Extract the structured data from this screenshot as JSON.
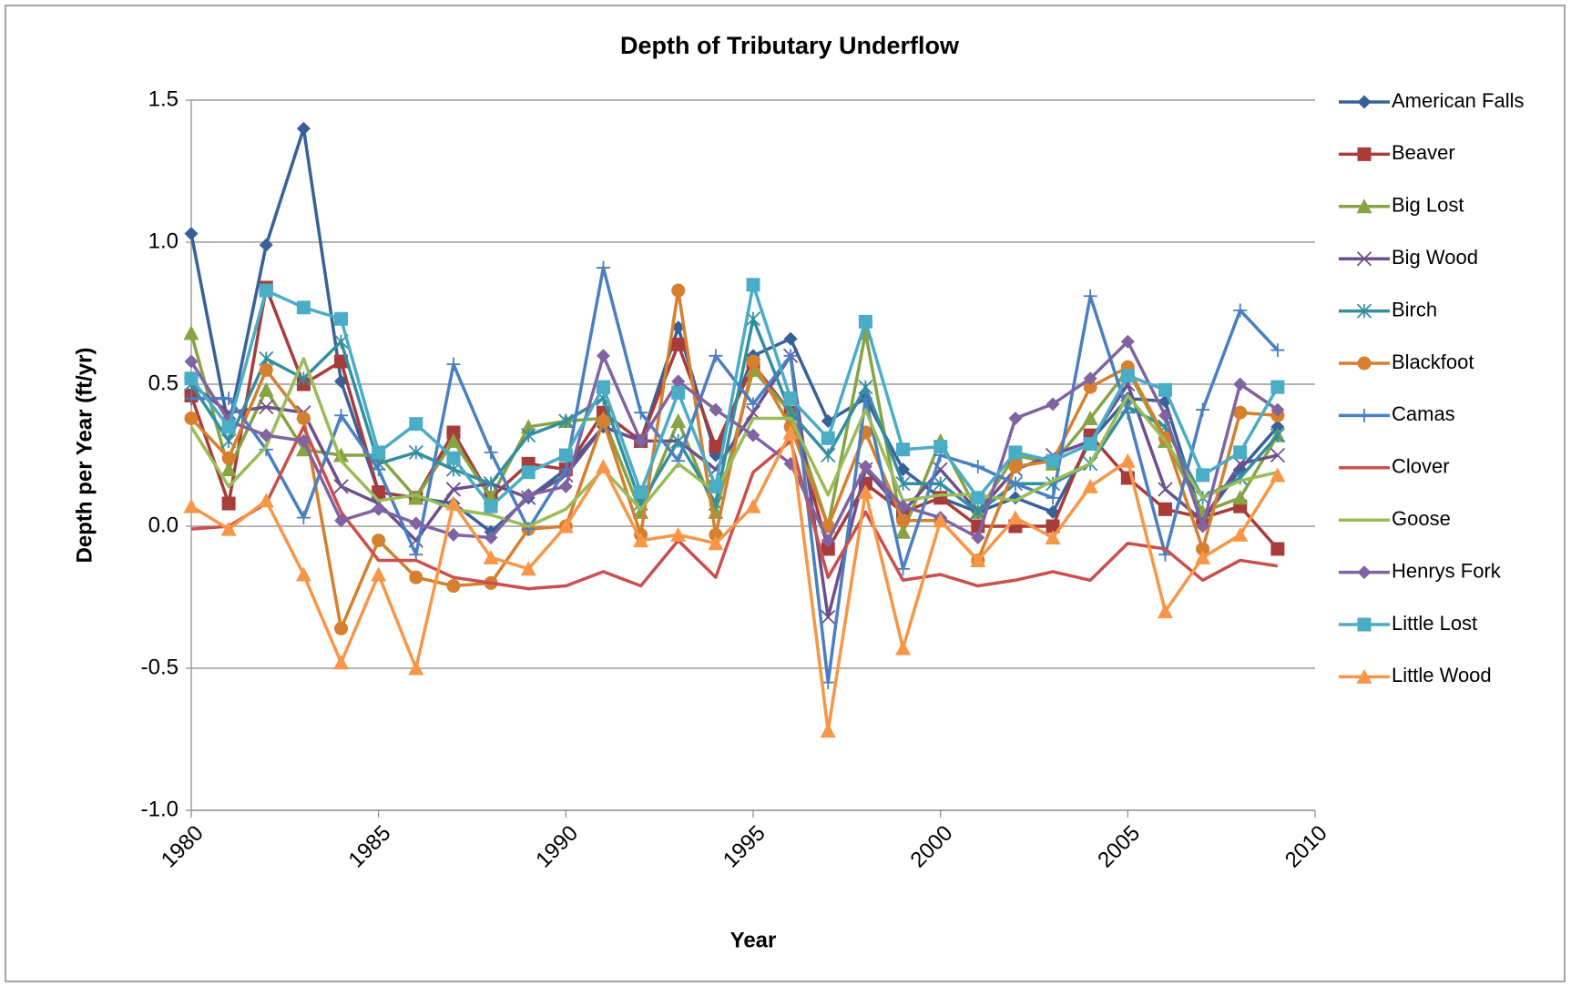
{
  "chart_data": {
    "type": "line",
    "title": "Depth of Tributary Underflow",
    "x_label": "Year",
    "y_label": "Depth per Year (ft/yr)",
    "x": [
      1980,
      1981,
      1982,
      1983,
      1984,
      1985,
      1986,
      1987,
      1988,
      1989,
      1990,
      1991,
      1992,
      1993,
      1994,
      1995,
      1996,
      1997,
      1998,
      1999,
      2000,
      2001,
      2002,
      2003,
      2004,
      2005,
      2006,
      2007,
      2008,
      2009
    ],
    "xlim": [
      1980,
      2010
    ],
    "xticks": [
      1980,
      1985,
      1990,
      1995,
      2000,
      2005,
      2010
    ],
    "ylim": [
      -1,
      1.5
    ],
    "yticks": [
      1.5,
      {
        "value": 1,
        "label": "1.0"
      },
      0.5,
      {
        "value": 0,
        "label": "0.0"
      },
      -0.5,
      {
        "value": -1,
        "label": "-1.0"
      }
    ],
    "grid": true,
    "legend": "right",
    "series": [
      {
        "name": "American Falls",
        "color": "#386199",
        "marker": "diamond",
        "values": [
          1.03,
          0.35,
          0.99,
          1.4,
          0.51,
          0.12,
          0.1,
          0.08,
          -0.02,
          0.1,
          0.2,
          0.35,
          0.3,
          0.7,
          0.25,
          0.6,
          0.66,
          0.37,
          0.45,
          0.2,
          0.1,
          0.05,
          0.1,
          0.05,
          0.3,
          0.45,
          0.44,
          0.02,
          0.2,
          0.35
        ]
      },
      {
        "name": "Beaver",
        "color": "#a83c3a",
        "marker": "square",
        "values": [
          0.46,
          0.08,
          0.84,
          0.5,
          0.58,
          0.12,
          0.1,
          0.33,
          0.1,
          0.22,
          0.2,
          0.4,
          0.3,
          0.64,
          0.28,
          0.57,
          0.4,
          -0.08,
          0.15,
          0.05,
          0.1,
          0,
          0,
          0,
          0.32,
          0.17,
          0.06,
          0.03,
          0.07,
          -0.08
        ]
      },
      {
        "name": "Big Lost",
        "color": "#86a444",
        "marker": "triangle",
        "values": [
          0.68,
          0.2,
          0.48,
          0.27,
          0.25,
          0.25,
          0.1,
          0.3,
          0.1,
          0.35,
          0.37,
          0.38,
          0.05,
          0.37,
          0.05,
          0.55,
          0.4,
          0,
          0.68,
          -0.02,
          0.3,
          0.05,
          0.25,
          0.22,
          0.38,
          0.55,
          0.3,
          0.05,
          0.1,
          0.32
        ]
      },
      {
        "name": "Big Wood",
        "color": "#6d4f8e",
        "marker": "x",
        "values": [
          0.5,
          0.4,
          0.42,
          0.4,
          0.14,
          0.08,
          -0.05,
          0.13,
          0.15,
          0.1,
          0.18,
          0.35,
          0.3,
          0.3,
          0.2,
          0.4,
          0.6,
          -0.32,
          0.2,
          0.05,
          0.2,
          0.05,
          0.2,
          0.25,
          0.3,
          0.5,
          0.13,
          0.02,
          0.22,
          0.25
        ]
      },
      {
        "name": "Birch",
        "color": "#358ea0",
        "marker": "star",
        "values": [
          0.5,
          0.3,
          0.59,
          0.52,
          0.65,
          0.22,
          0.26,
          0.2,
          0.15,
          0.32,
          0.37,
          0.45,
          0.08,
          0.3,
          0.08,
          0.73,
          0.4,
          0.25,
          0.49,
          0.15,
          0.15,
          0.05,
          0.15,
          0.15,
          0.22,
          0.42,
          0.35,
          0.1,
          0.17,
          0.32
        ]
      },
      {
        "name": "Blackfoot",
        "color": "#d4802f",
        "marker": "circle",
        "values": [
          0.38,
          0.24,
          0.55,
          0.38,
          -0.36,
          -0.05,
          -0.18,
          -0.21,
          -0.2,
          -0.01,
          0,
          0.37,
          -0.03,
          0.83,
          -0.03,
          0.58,
          0.35,
          0,
          0.33,
          0.02,
          0.02,
          -0.12,
          0.21,
          0.23,
          0.49,
          0.56,
          0.31,
          -0.08,
          0.4,
          0.39
        ]
      },
      {
        "name": "Camas",
        "color": "#4a7fc1",
        "marker": "plus",
        "values": [
          0.45,
          0.45,
          0.27,
          0.03,
          0.39,
          0.2,
          -0.1,
          0.57,
          0.26,
          -0.01,
          0.2,
          0.91,
          0.4,
          0.23,
          0.6,
          0.43,
          0.6,
          -0.55,
          0.45,
          -0.15,
          0.25,
          0.21,
          0.15,
          0.1,
          0.81,
          0.4,
          -0.1,
          0.41,
          0.76,
          0.62
        ]
      },
      {
        "name": "Clover",
        "color": "#c9504d",
        "marker": "none",
        "values": [
          -0.01,
          0,
          0.08,
          0.35,
          0.05,
          -0.12,
          -0.12,
          -0.18,
          -0.2,
          -0.22,
          -0.21,
          -0.16,
          -0.21,
          -0.05,
          -0.18,
          0.19,
          0.3,
          -0.18,
          0.05,
          -0.19,
          -0.17,
          -0.21,
          -0.19,
          -0.16,
          -0.19,
          -0.06,
          -0.08,
          -0.19,
          -0.12,
          -0.14
        ]
      },
      {
        "name": "Goose",
        "color": "#9bbb59",
        "marker": "none",
        "values": [
          0.35,
          0.14,
          0.28,
          0.59,
          0.23,
          0.09,
          0.11,
          0.06,
          0.04,
          0,
          0.06,
          0.2,
          0.06,
          0.22,
          0.12,
          0.38,
          0.38,
          0.11,
          0.41,
          0.09,
          0.11,
          0.11,
          0.09,
          0.16,
          0.22,
          0.46,
          0.3,
          0.1,
          0.16,
          0.19
        ]
      },
      {
        "name": "Henrys Fork",
        "color": "#8064a2",
        "marker": "diamond",
        "values": [
          0.58,
          0.37,
          0.32,
          0.3,
          0.02,
          0.06,
          0.01,
          -0.03,
          -0.04,
          0.11,
          0.14,
          0.6,
          0.3,
          0.51,
          0.41,
          0.32,
          0.22,
          -0.05,
          0.21,
          0.07,
          0.03,
          -0.04,
          0.38,
          0.43,
          0.52,
          0.65,
          0.39,
          0,
          0.5,
          0.41
        ]
      },
      {
        "name": "Little Lost",
        "color": "#4bacc6",
        "marker": "square",
        "values": [
          0.52,
          0.35,
          0.83,
          0.77,
          0.73,
          0.26,
          0.36,
          0.24,
          0.07,
          0.19,
          0.25,
          0.49,
          0.12,
          0.47,
          0.14,
          0.85,
          0.45,
          0.31,
          0.72,
          0.27,
          0.28,
          0.1,
          0.26,
          0.23,
          0.29,
          0.53,
          0.48,
          0.18,
          0.26,
          0.49
        ]
      },
      {
        "name": "Little Wood",
        "color": "#f79646",
        "marker": "triangle",
        "values": [
          0.07,
          -0.01,
          0.09,
          -0.17,
          -0.48,
          -0.17,
          -0.5,
          0.08,
          -0.11,
          -0.15,
          0,
          0.21,
          -0.05,
          -0.03,
          -0.06,
          0.07,
          0.33,
          -0.72,
          0.12,
          -0.43,
          0.02,
          -0.12,
          0.03,
          -0.04,
          0.14,
          0.23,
          -0.3,
          -0.11,
          -0.03,
          0.18
        ]
      }
    ]
  }
}
